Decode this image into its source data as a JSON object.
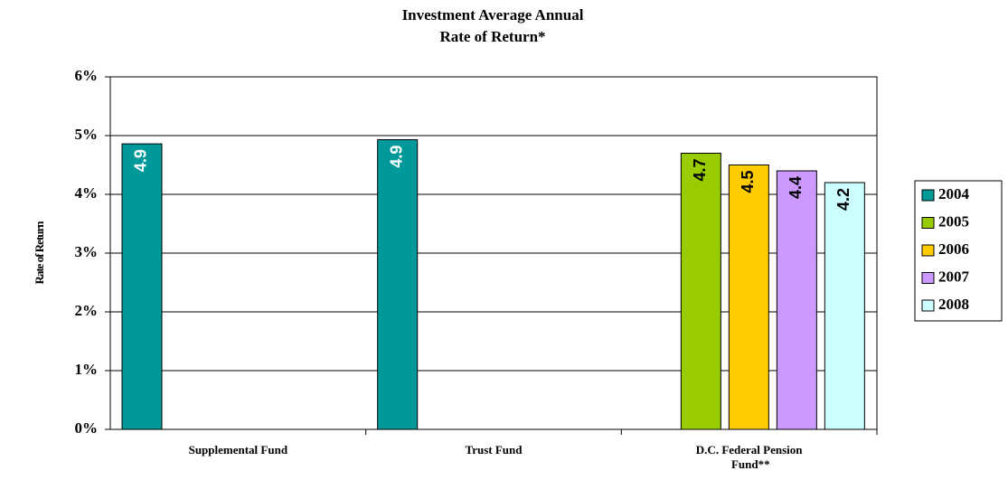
{
  "chart_data": {
    "type": "bar",
    "title": [
      "Investment Average Annual",
      "Rate of Return*"
    ],
    "y_axis_label": "Rate of Return",
    "categories": [
      "Supplemental Fund",
      "Trust Fund",
      "D.C. Federal Pension Fund**"
    ],
    "series": [
      {
        "name": "2004",
        "color": "#009999",
        "values": [
          4.86,
          4.93,
          null
        ],
        "value_labels": [
          "4.9",
          "4.9",
          null
        ]
      },
      {
        "name": "2005",
        "color": "#99cc00",
        "values": [
          null,
          null,
          4.7
        ],
        "value_labels": [
          null,
          null,
          "4.7"
        ]
      },
      {
        "name": "2006",
        "color": "#ffcc00",
        "values": [
          null,
          null,
          4.5
        ],
        "value_labels": [
          null,
          null,
          "4.5"
        ]
      },
      {
        "name": "2007",
        "color": "#cc99ff",
        "values": [
          null,
          null,
          4.4
        ],
        "value_labels": [
          null,
          null,
          "4.4"
        ]
      },
      {
        "name": "2008",
        "color": "#ccffff",
        "values": [
          null,
          null,
          4.2
        ],
        "value_labels": [
          null,
          null,
          "4.2"
        ]
      }
    ],
    "ylim": [
      0,
      6
    ],
    "yticks": [
      {
        "value": 0,
        "label": "0%"
      },
      {
        "value": 1,
        "label": "1%"
      },
      {
        "value": 2,
        "label": "2%"
      },
      {
        "value": 3,
        "label": "3%"
      },
      {
        "value": 4,
        "label": "4%"
      },
      {
        "value": 5,
        "label": "5%"
      },
      {
        "value": 6,
        "label": "6%"
      }
    ],
    "grid": true,
    "legend": "right"
  }
}
